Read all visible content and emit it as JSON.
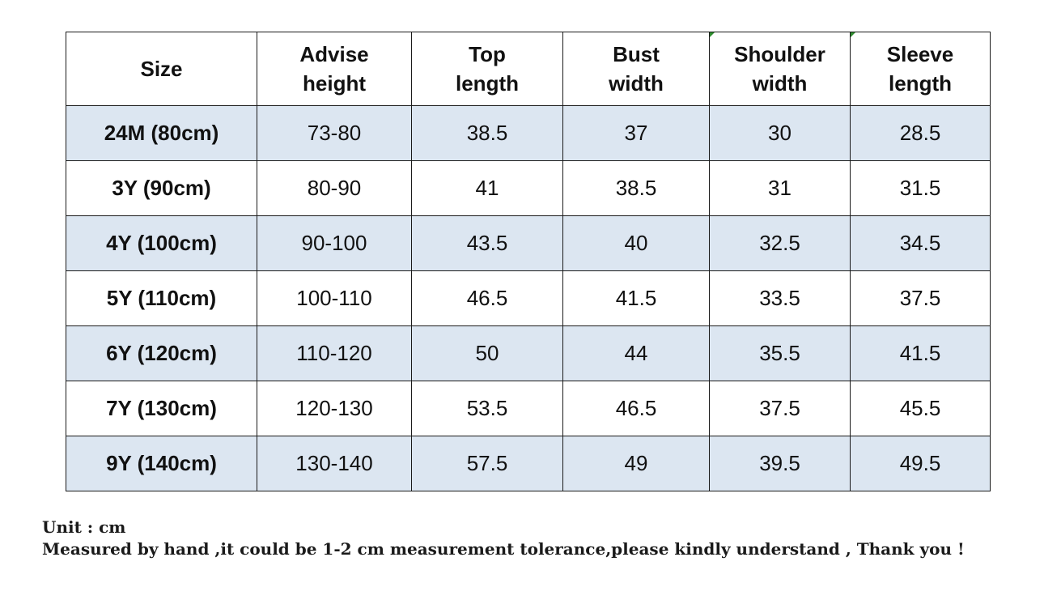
{
  "table": {
    "headers": [
      {
        "line1": "Size",
        "line2": ""
      },
      {
        "line1": "Advise",
        "line2": "height"
      },
      {
        "line1": "Top",
        "line2": "length"
      },
      {
        "line1": "Bust",
        "line2": "width"
      },
      {
        "line1": "Shoulder",
        "line2": "width"
      },
      {
        "line1": "Sleeve",
        "line2": "length"
      }
    ],
    "rows": [
      [
        "24M (80cm)",
        "73-80",
        "38.5",
        "37",
        "30",
        "28.5"
      ],
      [
        "3Y (90cm)",
        "80-90",
        "41",
        "38.5",
        "31",
        "31.5"
      ],
      [
        "4Y (100cm)",
        "90-100",
        "43.5",
        "40",
        "32.5",
        "34.5"
      ],
      [
        "5Y (110cm)",
        "100-110",
        "46.5",
        "41.5",
        "33.5",
        "37.5"
      ],
      [
        "6Y (120cm)",
        "110-120",
        "50",
        "44",
        "35.5",
        "41.5"
      ],
      [
        "7Y (130cm)",
        "120-130",
        "53.5",
        "46.5",
        "37.5",
        "45.5"
      ],
      [
        "9Y (140cm)",
        "130-140",
        "57.5",
        "49",
        "39.5",
        "49.5"
      ]
    ],
    "shaded_row_color": "#dce6f1"
  },
  "notes": {
    "unit": "Unit : cm",
    "disclaimer": "Measured by hand ,it could be 1-2 cm measurement tolerance,please kindly understand , Thank you !"
  }
}
